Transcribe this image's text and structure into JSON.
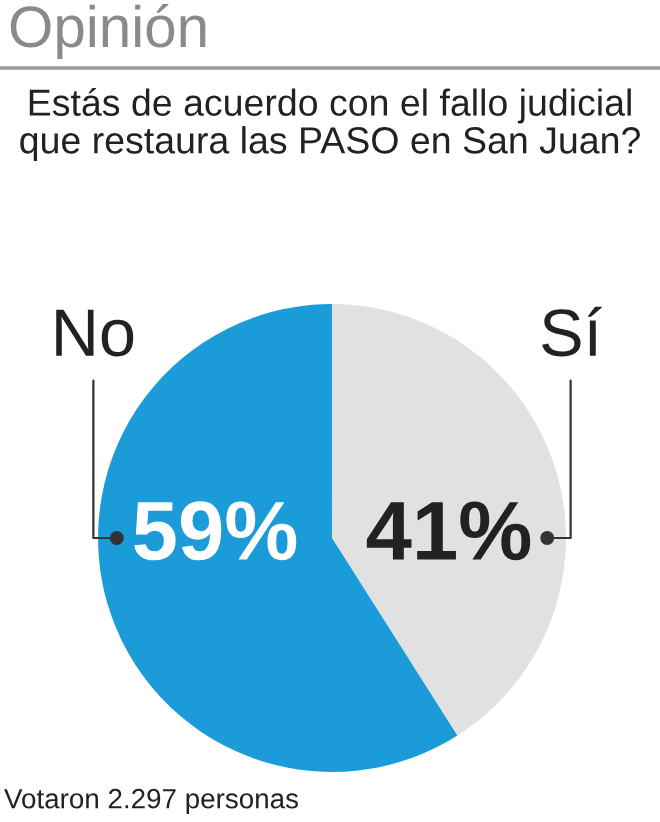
{
  "chart_data": {
    "type": "pie",
    "title": "Opinión",
    "subtitle": "Estás de acuerdo con el fallo judicial que restaura las PASO en San Juan?",
    "categories": [
      "Sí",
      "No"
    ],
    "values": [
      41,
      59
    ],
    "colors": [
      "#e1e1e1",
      "#1b9bd7"
    ],
    "value_labels": [
      "41%",
      "59%"
    ],
    "annotations": [
      "Votaron 2.297 personas"
    ],
    "legend": false
  }
}
